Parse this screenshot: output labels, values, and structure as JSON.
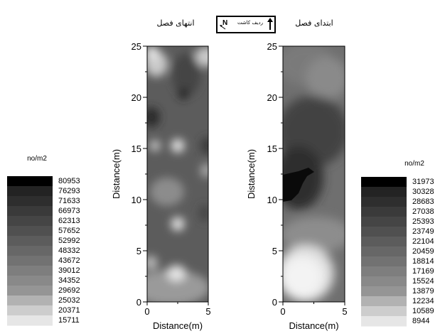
{
  "north_box": {
    "label": "ردیف کاشت",
    "north": "N",
    "arrow_icon": "north-arrow-icon"
  },
  "chart_data": [
    {
      "type": "heatmap",
      "title": "انتهای فصل",
      "xlabel": "Distance(m)",
      "ylabel": "Distance(m)",
      "xlim": [
        0,
        5
      ],
      "ylim": [
        0,
        25
      ],
      "x_ticks": [
        "0",
        "5"
      ],
      "y_ticks": [
        "0",
        "5",
        "10",
        "15",
        "20",
        "25"
      ],
      "legend": {
        "unit": "no/m2",
        "placement": "left",
        "levels": [
          80953,
          76293,
          71633,
          66973,
          62313,
          57652,
          52992,
          48332,
          43672,
          39012,
          34352,
          29692,
          25032,
          20371,
          15711
        ],
        "colors": [
          "#000000",
          "#232323",
          "#2e2e2e",
          "#3a3a3a",
          "#454545",
          "#505050",
          "#5c5c5c",
          "#676767",
          "#727272",
          "#7e7e7e",
          "#898989",
          "#959595",
          "#b2b2b2",
          "#cdcdcd",
          "#e6e6e6"
        ]
      }
    },
    {
      "type": "heatmap",
      "title": "ابتدای فصل",
      "xlabel": "Distance(m)",
      "ylabel": "Distance(m)",
      "xlim": [
        0,
        5
      ],
      "ylim": [
        0,
        25
      ],
      "x_ticks": [
        "0",
        "5"
      ],
      "y_ticks": [
        "0",
        "5",
        "10",
        "15",
        "20",
        "25"
      ],
      "legend": {
        "unit": "no/m2",
        "placement": "right",
        "levels": [
          31973,
          30328,
          28683,
          27038,
          25393,
          23749,
          22104,
          20459,
          18814,
          17169,
          15524,
          13879,
          12234,
          10589,
          8944
        ],
        "colors": [
          "#000000",
          "#232323",
          "#2e2e2e",
          "#3a3a3a",
          "#454545",
          "#505050",
          "#5c5c5c",
          "#676767",
          "#727272",
          "#7e7e7e",
          "#898989",
          "#959595",
          "#b2b2b2",
          "#cdcdcd",
          "#e6e6e6"
        ]
      }
    }
  ]
}
